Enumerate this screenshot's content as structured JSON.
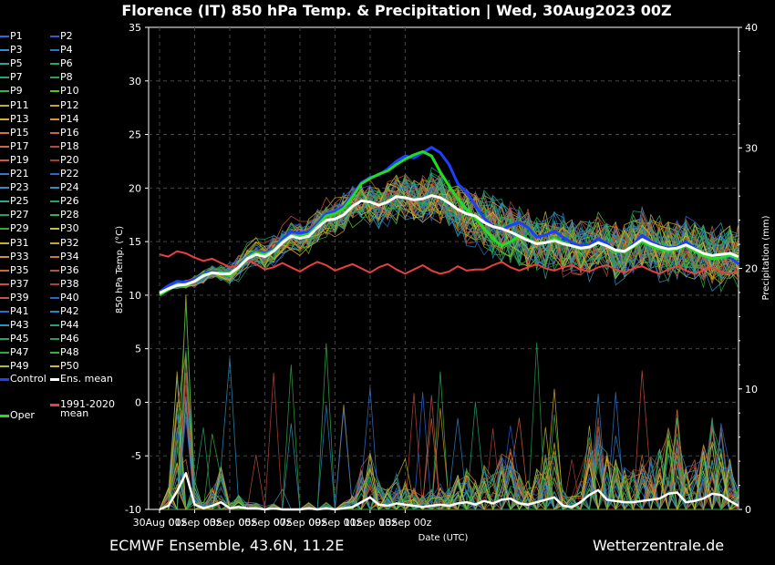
{
  "chart_data": {
    "type": "line",
    "title": "Florence  (IT)  850 hPa Temp. & Precipitation | Wed, 30Aug2023 00Z",
    "ylabel": "850 hPa Temp. (°C)",
    "y2label": "Precipitation (mm)",
    "xlabel": "Date (UTC)",
    "ylim": [
      -10,
      35
    ],
    "y2lim": [
      0,
      40
    ],
    "yticks": [
      "35",
      "30",
      "25",
      "20",
      "15",
      "10",
      "5",
      "0",
      "-5",
      "-10"
    ],
    "y2ticks": [
      "40",
      "30",
      "20",
      "10",
      "0"
    ],
    "x_ticks": [
      "30Aug 00z",
      "01Sep 00z",
      "03Sep 00z",
      "05Sep 00z",
      "07Sep 00z",
      "09Sep 00z",
      "11Sep 00z",
      "13Sep 00z"
    ],
    "x_start": "2023-08-30 00z",
    "x_end": "2023-09-15 12z",
    "grid": true,
    "colors": {
      "control": "#1f3fff",
      "ens_mean": "#ffffff",
      "climate_mean": "#e84040",
      "oper": "#22dd22"
    },
    "ens_mean": [
      10.2,
      10.6,
      10.9,
      11.0,
      11.3,
      11.8,
      12.1,
      12.0,
      12.0,
      12.6,
      13.4,
      13.8,
      13.6,
      14.1,
      14.9,
      15.5,
      15.3,
      15.5,
      16.3,
      17.0,
      17.1,
      17.5,
      18.3,
      18.8,
      18.7,
      18.4,
      18.7,
      19.2,
      19.1,
      18.9,
      19.0,
      19.3,
      19.1,
      18.6,
      18.0,
      17.6,
      17.4,
      16.8,
      16.4,
      16.2,
      15.9,
      15.5,
      15.1,
      14.8,
      14.9,
      15.1,
      14.8,
      14.6,
      14.4,
      14.5,
      14.9,
      14.6,
      14.2,
      14.1,
      14.6,
      15.2,
      14.8,
      14.5,
      14.3,
      14.4,
      14.7,
      14.3,
      13.9,
      13.7,
      13.8,
      13.9,
      13.6
    ],
    "climate_mean": [
      13.8,
      13.6,
      14.1,
      13.9,
      13.5,
      13.2,
      13.4,
      13.0,
      12.6,
      12.8,
      13.3,
      12.9,
      12.4,
      12.6,
      13.0,
      12.6,
      12.2,
      12.7,
      13.1,
      12.8,
      12.3,
      12.6,
      12.9,
      12.5,
      12.1,
      12.6,
      12.9,
      12.4,
      12.0,
      12.4,
      12.8,
      12.3,
      12.0,
      12.2,
      12.7,
      12.3,
      12.4,
      12.4,
      12.8,
      13.1,
      12.6,
      12.3,
      12.6,
      12.9,
      12.5,
      12.3,
      12.6,
      12.8,
      12.4,
      12.2,
      12.6,
      12.8,
      12.4,
      12.1,
      12.5,
      12.7,
      12.3,
      12.0,
      12.4,
      12.7,
      12.3,
      12.0,
      12.3,
      12.6,
      12.2,
      12.0,
      12.3
    ],
    "control": [
      10.3,
      10.9,
      11.3,
      11.2,
      11.5,
      12.0,
      12.2,
      12.1,
      11.9,
      12.7,
      13.6,
      14.1,
      13.9,
      14.3,
      15.2,
      15.9,
      15.8,
      15.9,
      16.7,
      17.6,
      17.8,
      18.3,
      19.4,
      20.5,
      21.0,
      21.2,
      21.8,
      22.5,
      23.0,
      22.8,
      23.3,
      23.8,
      23.3,
      22.2,
      20.4,
      19.6,
      18.4,
      17.2,
      16.4,
      16.1,
      16.5,
      16.8,
      16.3,
      15.4,
      15.6,
      16.0,
      15.4,
      14.9,
      14.6,
      14.7,
      15.3,
      14.8,
      14.1,
      14.0,
      14.7,
      15.6,
      15.0,
      14.6,
      14.4,
      14.5,
      15.0,
      14.4,
      13.8,
      13.4,
      13.6,
      13.6,
      12.9
    ],
    "oper": [
      10.0,
      10.5,
      11.0,
      10.9,
      11.3,
      11.9,
      12.0,
      12.1,
      11.8,
      12.6,
      13.5,
      14.0,
      13.8,
      14.2,
      15.0,
      15.6,
      15.5,
      15.7,
      16.5,
      17.4,
      17.6,
      18.1,
      19.2,
      20.4,
      20.9,
      21.3,
      21.6,
      22.2,
      22.7,
      23.1,
      23.4,
      23.0,
      21.5,
      20.2,
      19.0,
      18.0,
      17.2,
      16.2,
      15.3,
      14.6,
      15.0,
      15.5,
      15.2,
      14.8,
      14.9,
      15.3,
      14.9,
      14.6,
      14.3,
      14.5,
      14.9,
      14.6,
      14.1,
      14.0,
      14.5,
      15.0,
      14.6,
      14.3,
      14.1,
      14.3,
      14.6,
      14.1,
      13.7,
      13.4,
      13.5,
      13.7,
      13.4
    ],
    "precip_mean": [
      0,
      0.3,
      1.5,
      3.0,
      0.4,
      0.1,
      0.3,
      0.6,
      0.1,
      0.2,
      0.1,
      0.1,
      0,
      0.1,
      0,
      0,
      0,
      0.1,
      0,
      0.1,
      0,
      0.1,
      0.2,
      0.6,
      1.0,
      0.4,
      0.3,
      0.5,
      0.4,
      0.3,
      0.2,
      0.3,
      0.4,
      0.3,
      0.5,
      0.6,
      0.4,
      0.7,
      0.5,
      0.8,
      0.9,
      0.5,
      0.4,
      0.6,
      0.8,
      1.0,
      0.3,
      0.2,
      0.6,
      1.2,
      1.6,
      0.8,
      0.7,
      0.6,
      0.6,
      0.7,
      0.8,
      0.9,
      1.3,
      1.4,
      0.6,
      0.7,
      0.9,
      1.3,
      1.2,
      0.7,
      0.3
    ]
  },
  "legend": {
    "members": [
      "P1",
      "P2",
      "P3",
      "P4",
      "P5",
      "P6",
      "P7",
      "P8",
      "P9",
      "P10",
      "P11",
      "P12",
      "P13",
      "P14",
      "P15",
      "P16",
      "P17",
      "P18",
      "P19",
      "P20",
      "P21",
      "P22",
      "P23",
      "P24",
      "P25",
      "P26",
      "P27",
      "P28",
      "P29",
      "P30",
      "P31",
      "P32",
      "P33",
      "P34",
      "P35",
      "P36",
      "P37",
      "P38",
      "P39",
      "P40",
      "P41",
      "P42",
      "P43",
      "P44",
      "P45",
      "P46",
      "P47",
      "P48",
      "P49",
      "P50"
    ],
    "member_colors": [
      "#2a6dd9",
      "#2f5bd6",
      "#3a8cc8",
      "#2e74c8",
      "#2fa0a0",
      "#22aa66",
      "#22a878",
      "#2aa04a",
      "#33b24d",
      "#55c222",
      "#b8b428",
      "#c8a52b",
      "#d4b02e",
      "#d8942a",
      "#c97a35",
      "#c06a36",
      "#d2683a",
      "#b8463a",
      "#c85a48",
      "#a83a35",
      "#3a74d0",
      "#2c68c8",
      "#3a8cc0",
      "#2e90c0",
      "#2fa892",
      "#22a670",
      "#2aa05e",
      "#32b052",
      "#3aa63e",
      "#c4c228",
      "#c8b02e",
      "#d0a036",
      "#d09232",
      "#c87a30",
      "#c86a3a",
      "#b8523a",
      "#c8503e",
      "#b0403a",
      "#c05848",
      "#2a64d0",
      "#2a6ec8",
      "#2e82c4",
      "#2f96b8",
      "#24a078",
      "#26a864",
      "#28a04e",
      "#30a840",
      "#3cae3a",
      "#b4b82a",
      "#d0b82a"
    ],
    "control_label": "Control",
    "ens_mean_label": "Ens. mean",
    "climate_label_1": "1991-2020",
    "climate_label_2": "mean",
    "oper_label": "Oper"
  },
  "footer": {
    "left": "ECMWF Ensemble, 43.6N, 11.2E",
    "right": "Wetterzentrale.de"
  }
}
